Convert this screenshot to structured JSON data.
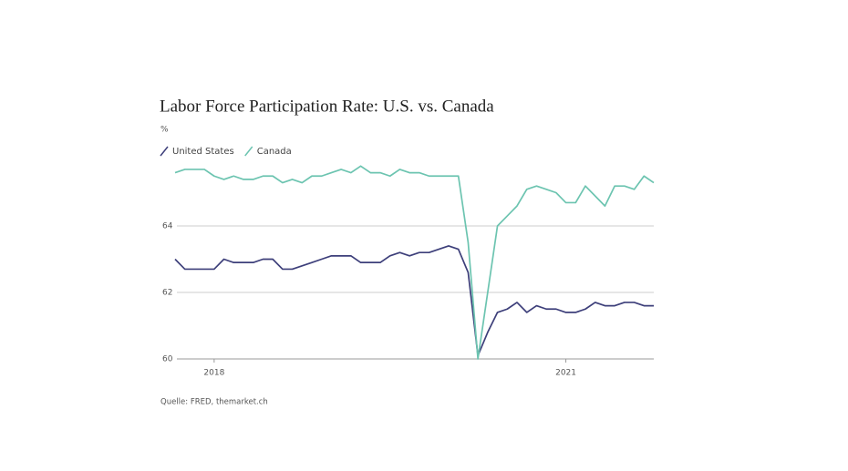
{
  "chart_data": {
    "type": "line",
    "title": "Labor Force Participation Rate: U.S. vs. Canada",
    "y_label": "%",
    "source": "Quelle: FRED, themarket.ch",
    "categories": [
      null,
      null,
      null,
      null,
      "2018",
      null,
      null,
      null,
      null,
      null,
      null,
      null,
      null,
      null,
      null,
      null,
      null,
      null,
      null,
      null,
      null,
      null,
      null,
      null,
      null,
      null,
      null,
      null,
      null,
      null,
      null,
      null,
      null,
      null,
      null,
      null,
      null,
      null,
      null,
      null,
      "2021",
      null,
      null,
      null,
      null,
      null,
      null,
      null,
      null,
      null
    ],
    "series": [
      {
        "name": "United States",
        "color": "#3d3f7a",
        "values": [
          63.0,
          62.7,
          62.7,
          62.7,
          62.7,
          63.0,
          62.9,
          62.9,
          62.9,
          63.0,
          63.0,
          62.7,
          62.7,
          62.8,
          62.9,
          63.0,
          63.1,
          63.1,
          63.1,
          62.9,
          62.9,
          62.9,
          63.1,
          63.2,
          63.1,
          63.2,
          63.2,
          63.3,
          63.4,
          63.3,
          62.6,
          60.1,
          60.8,
          61.4,
          61.5,
          61.7,
          61.4,
          61.6,
          61.5,
          61.5,
          61.4,
          61.4,
          61.5,
          61.7,
          61.6,
          61.6,
          61.7,
          61.7,
          61.6,
          61.6
        ]
      },
      {
        "name": "Canada",
        "color": "#6cc4b0",
        "values": [
          65.6,
          65.7,
          65.7,
          65.7,
          65.5,
          65.4,
          65.5,
          65.4,
          65.4,
          65.5,
          65.5,
          65.3,
          65.4,
          65.3,
          65.5,
          65.5,
          65.6,
          65.7,
          65.6,
          65.8,
          65.6,
          65.6,
          65.5,
          65.7,
          65.6,
          65.6,
          65.5,
          65.5,
          65.5,
          65.5,
          63.5,
          60.0,
          62.0,
          64.0,
          64.3,
          64.6,
          65.1,
          65.2,
          65.1,
          65.0,
          64.7,
          64.7,
          65.2,
          64.9,
          64.6,
          65.2,
          65.2,
          65.1,
          65.5,
          65.3
        ]
      }
    ],
    "ylim": [
      60,
      66
    ],
    "yticks": [
      60,
      62,
      64
    ],
    "grid": true,
    "legend": "top-left"
  }
}
